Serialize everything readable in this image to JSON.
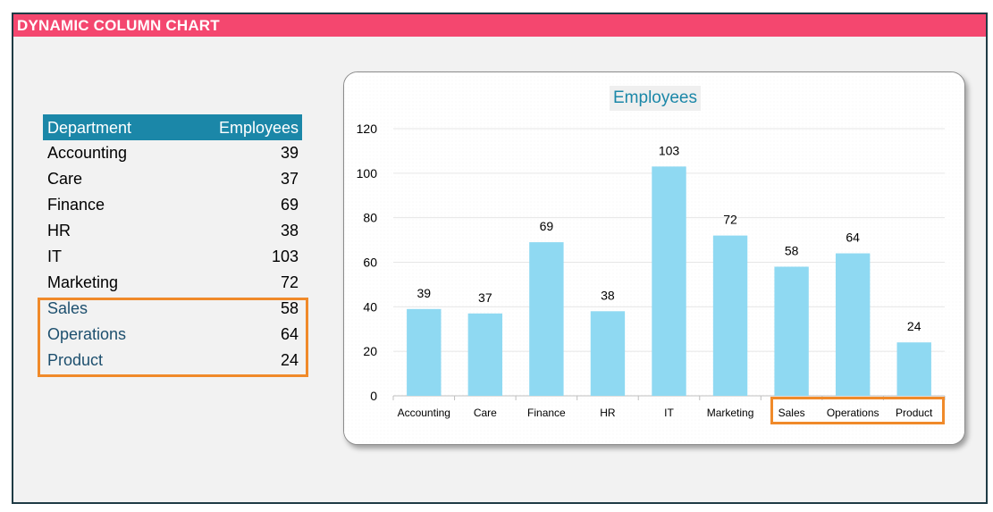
{
  "banner": {
    "title": "DYNAMIC COLUMN CHART"
  },
  "table": {
    "headers": {
      "department": "Department",
      "employees": "Employees"
    },
    "rows": [
      {
        "department": "Accounting",
        "employees": "39"
      },
      {
        "department": "Care",
        "employees": "37"
      },
      {
        "department": "Finance",
        "employees": "69"
      },
      {
        "department": "HR",
        "employees": "38"
      },
      {
        "department": "IT",
        "employees": "103"
      },
      {
        "department": "Marketing",
        "employees": "72"
      },
      {
        "department": "Sales",
        "employees": "58"
      },
      {
        "department": "Operations",
        "employees": "64"
      },
      {
        "department": "Product",
        "employees": "24"
      }
    ]
  },
  "chart_data": {
    "type": "bar",
    "title": "Employees",
    "categories": [
      "Accounting",
      "Care",
      "Finance",
      "HR",
      "IT",
      "Marketing",
      "Sales",
      "Operations",
      "Product"
    ],
    "values": [
      39,
      37,
      69,
      38,
      103,
      72,
      58,
      64,
      24
    ],
    "ylim": [
      0,
      120
    ],
    "yticks": [
      0,
      20,
      40,
      60,
      80,
      100,
      120
    ],
    "xlabel": "",
    "ylabel": "",
    "grid": true,
    "bar_color": "#8fd9f2",
    "highlight_color": "#f08a2a",
    "highlighted_categories": [
      "Sales",
      "Operations",
      "Product"
    ]
  }
}
